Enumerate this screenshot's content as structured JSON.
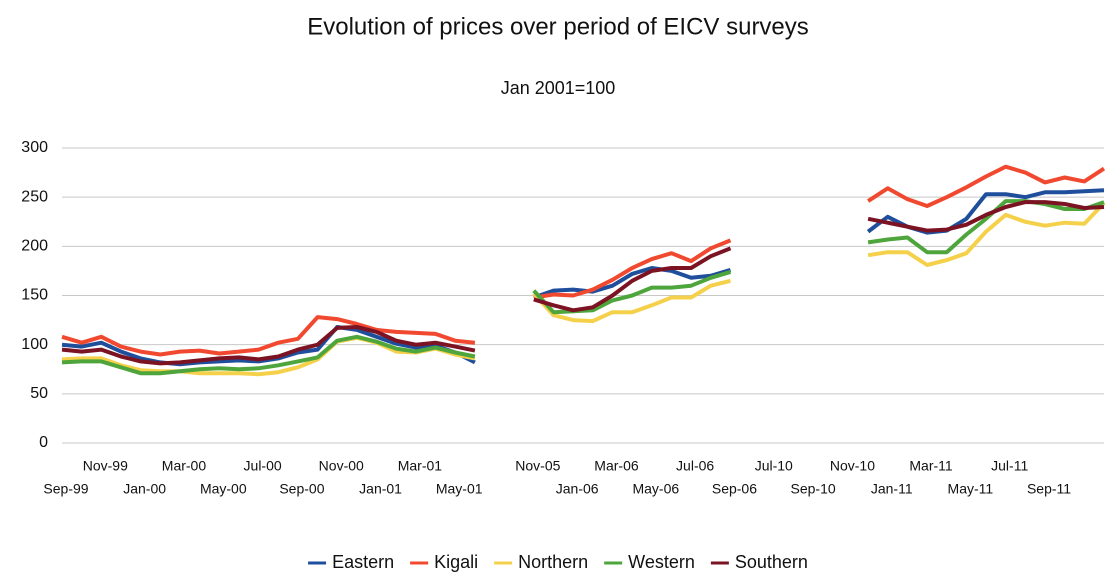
{
  "chart_data": {
    "type": "line",
    "title": "Evolution of prices over period of EICV surveys",
    "subtitle": "Jan 2001=100",
    "categories": [
      "Sep-99",
      null,
      "Nov-99",
      null,
      "Jan-00",
      null,
      "Mar-00",
      null,
      "May-00",
      null,
      "Jul-00",
      null,
      "Sep-00",
      null,
      "Nov-00",
      null,
      "Jan-01",
      null,
      "Mar-01",
      null,
      "May-01",
      null,
      null,
      null,
      "Nov-05",
      null,
      "Jan-06",
      null,
      "Mar-06",
      null,
      "May-06",
      null,
      "Jul-06",
      null,
      "Sep-06",
      null,
      "Jul-10",
      null,
      "Sep-10",
      null,
      "Nov-10",
      null,
      "Jan-11",
      null,
      "Mar-11",
      null,
      "May-11",
      null,
      "Jul-11",
      null,
      "Sep-11",
      null,
      null,
      null
    ],
    "series": [
      {
        "name": "Eastern",
        "color": "#1f4e9c",
        "values": [
          100,
          98,
          102,
          93,
          86,
          82,
          80,
          82,
          83,
          84,
          83,
          86,
          92,
          95,
          118,
          115,
          108,
          101,
          97,
          99,
          92,
          82,
          null,
          null,
          148,
          155,
          156,
          154,
          160,
          172,
          178,
          175,
          168,
          170,
          176,
          null,
          null,
          null,
          null,
          null,
          null,
          215,
          230,
          220,
          214,
          216,
          228,
          253,
          253,
          250,
          255,
          255,
          256,
          257
        ]
      },
      {
        "name": "Kigali",
        "color": "#f0492f",
        "values": [
          108,
          102,
          108,
          98,
          93,
          90,
          93,
          94,
          91,
          93,
          95,
          102,
          106,
          128,
          126,
          121,
          115,
          113,
          112,
          111,
          104,
          102,
          null,
          null,
          148,
          151,
          150,
          156,
          166,
          178,
          187,
          193,
          185,
          198,
          206,
          null,
          null,
          null,
          null,
          null,
          null,
          246,
          259,
          248,
          241,
          250,
          260,
          271,
          281,
          275,
          265,
          270,
          266,
          279
        ]
      },
      {
        "name": "Northern",
        "color": "#f5d04a",
        "values": [
          85,
          86,
          86,
          79,
          74,
          73,
          73,
          71,
          71,
          71,
          70,
          72,
          77,
          85,
          103,
          107,
          102,
          93,
          92,
          96,
          90,
          86,
          null,
          null,
          152,
          130,
          125,
          124,
          133,
          133,
          140,
          148,
          148,
          160,
          165,
          null,
          null,
          null,
          null,
          null,
          null,
          191,
          194,
          194,
          181,
          186,
          193,
          215,
          232,
          225,
          221,
          224,
          223,
          244
        ]
      },
      {
        "name": "Western",
        "color": "#4ea53c",
        "values": [
          82,
          83,
          83,
          77,
          71,
          71,
          73,
          75,
          76,
          75,
          76,
          79,
          83,
          87,
          104,
          108,
          103,
          96,
          93,
          97,
          92,
          88,
          null,
          null,
          155,
          133,
          134,
          135,
          145,
          150,
          158,
          158,
          160,
          168,
          174,
          null,
          null,
          null,
          null,
          null,
          null,
          204,
          207,
          209,
          194,
          194,
          212,
          228,
          246,
          246,
          243,
          238,
          238,
          245
        ]
      },
      {
        "name": "Southern",
        "color": "#7b1323",
        "values": [
          95,
          93,
          95,
          88,
          83,
          81,
          82,
          84,
          86,
          87,
          85,
          88,
          95,
          100,
          117,
          118,
          113,
          104,
          100,
          102,
          98,
          94,
          null,
          null,
          146,
          140,
          135,
          138,
          150,
          165,
          175,
          178,
          178,
          190,
          198,
          null,
          null,
          null,
          null,
          null,
          null,
          228,
          224,
          220,
          216,
          217,
          222,
          232,
          240,
          245,
          245,
          243,
          239,
          240
        ]
      }
    ],
    "ylim": [
      0,
      300
    ],
    "yticks": [
      0,
      50,
      100,
      150,
      200,
      250,
      300
    ],
    "grid": true,
    "legend": "bottom"
  }
}
